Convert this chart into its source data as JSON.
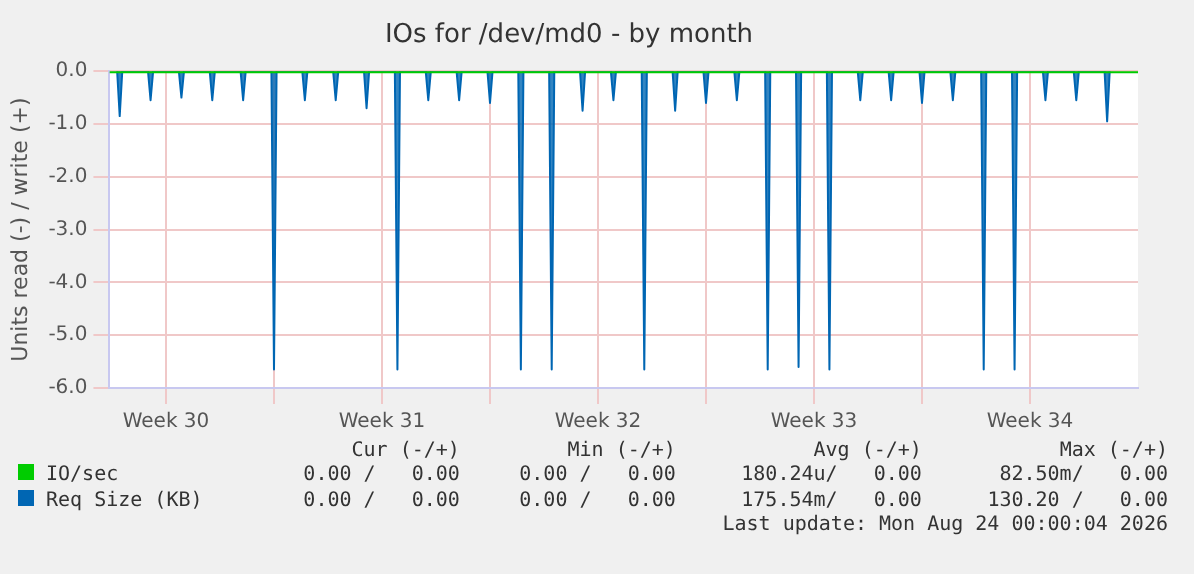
{
  "chart_data": {
    "type": "area",
    "title": "IOs for /dev/md0 - by month",
    "ylabel": "Units read (-) / write (+)",
    "xlim": [
      "2026-07-21T16:00",
      "2026-08-24T00:00"
    ],
    "ylim": [
      -6,
      0
    ],
    "yticks": [
      {
        "value": -6,
        "label": "-6.0"
      },
      {
        "value": -5,
        "label": "-5.0"
      },
      {
        "value": -4,
        "label": "-4.0"
      },
      {
        "value": -3,
        "label": "-3.0"
      },
      {
        "value": -2,
        "label": "-2.0"
      },
      {
        "value": -1,
        "label": "-1.0"
      },
      {
        "value": 0,
        "label": "0.0"
      }
    ],
    "xticks": [
      {
        "value": "2026-07-23T12:00",
        "label": "Week 30"
      },
      {
        "value": "2026-07-27T00:00",
        "label": null
      },
      {
        "value": "2026-07-30T12:00",
        "label": "Week 31"
      },
      {
        "value": "2026-08-03T00:00",
        "label": null
      },
      {
        "value": "2026-08-06T12:00",
        "label": "Week 32"
      },
      {
        "value": "2026-08-10T00:00",
        "label": null
      },
      {
        "value": "2026-08-13T12:00",
        "label": "Week 33"
      },
      {
        "value": "2026-08-17T00:00",
        "label": null
      },
      {
        "value": "2026-08-20T12:00",
        "label": "Week 34"
      }
    ],
    "grid": true,
    "legend": "bottom",
    "marker": "none",
    "series": [
      {
        "name": "IO/sec",
        "color": "#00cc00",
        "type": "line",
        "x": [
          "2026-07-21T16:00",
          "2026-08-24T00:00"
        ],
        "values": [
          0,
          0
        ]
      },
      {
        "name": "Req Size (KB)",
        "color": "#0066b3",
        "type": "area",
        "x": [
          "2026-07-21T22:00",
          "2026-07-22T00:00",
          "2026-07-22T02:00",
          "2026-07-22T22:00",
          "2026-07-23T00:00",
          "2026-07-23T02:00",
          "2026-07-23T22:00",
          "2026-07-24T00:00",
          "2026-07-24T02:00",
          "2026-07-24T22:00",
          "2026-07-25T00:00",
          "2026-07-25T02:00",
          "2026-07-25T22:00",
          "2026-07-26T00:00",
          "2026-07-26T02:00",
          "2026-07-26T22:00",
          "2026-07-27T00:00",
          "2026-07-27T02:00",
          "2026-07-27T22:00",
          "2026-07-28T00:00",
          "2026-07-28T02:00",
          "2026-07-28T22:00",
          "2026-07-29T00:00",
          "2026-07-29T02:00",
          "2026-07-29T22:00",
          "2026-07-30T00:00",
          "2026-07-30T02:00",
          "2026-07-30T22:00",
          "2026-07-31T00:00",
          "2026-07-31T02:00",
          "2026-07-31T22:00",
          "2026-08-01T00:00",
          "2026-08-01T02:00",
          "2026-08-01T22:00",
          "2026-08-02T00:00",
          "2026-08-02T02:00",
          "2026-08-02T22:00",
          "2026-08-03T00:00",
          "2026-08-03T02:00",
          "2026-08-03T22:00",
          "2026-08-04T00:00",
          "2026-08-04T02:00",
          "2026-08-04T22:00",
          "2026-08-05T00:00",
          "2026-08-05T02:00",
          "2026-08-05T22:00",
          "2026-08-06T00:00",
          "2026-08-06T02:00",
          "2026-08-06T22:00",
          "2026-08-07T00:00",
          "2026-08-07T02:00",
          "2026-08-07T22:00",
          "2026-08-08T00:00",
          "2026-08-08T02:00",
          "2026-08-08T22:00",
          "2026-08-09T00:00",
          "2026-08-09T02:00",
          "2026-08-09T22:00",
          "2026-08-10T00:00",
          "2026-08-10T02:00",
          "2026-08-10T22:00",
          "2026-08-11T00:00",
          "2026-08-11T02:00",
          "2026-08-11T22:00",
          "2026-08-12T00:00",
          "2026-08-12T02:00",
          "2026-08-12T22:00",
          "2026-08-13T00:00",
          "2026-08-13T02:00",
          "2026-08-13T22:00",
          "2026-08-14T00:00",
          "2026-08-14T02:00",
          "2026-08-14T22:00",
          "2026-08-15T00:00",
          "2026-08-15T02:00",
          "2026-08-15T22:00",
          "2026-08-16T00:00",
          "2026-08-16T02:00",
          "2026-08-16T22:00",
          "2026-08-17T00:00",
          "2026-08-17T02:00",
          "2026-08-17T22:00",
          "2026-08-18T00:00",
          "2026-08-18T02:00",
          "2026-08-18T22:00",
          "2026-08-19T00:00",
          "2026-08-19T02:00",
          "2026-08-19T22:00",
          "2026-08-20T00:00",
          "2026-08-20T02:00",
          "2026-08-20T22:00",
          "2026-08-21T00:00",
          "2026-08-21T02:00",
          "2026-08-21T22:00",
          "2026-08-22T00:00",
          "2026-08-22T02:00",
          "2026-08-22T22:00",
          "2026-08-23T00:00",
          "2026-08-23T02:00"
        ],
        "values": [
          0,
          -0.85,
          0,
          0,
          -0.55,
          0,
          0,
          -0.5,
          0,
          0,
          -0.55,
          0,
          0,
          -0.55,
          0,
          0,
          -5.65,
          0,
          0,
          -0.55,
          0,
          0,
          -0.55,
          0,
          0,
          -0.7,
          0,
          0,
          -5.65,
          0,
          0,
          -0.55,
          0,
          0,
          -0.55,
          0,
          0,
          -0.6,
          0,
          0,
          -5.65,
          0,
          0,
          -5.65,
          0,
          0,
          -0.75,
          0,
          0,
          -0.55,
          0,
          0,
          -5.65,
          0,
          0,
          -0.75,
          0,
          0,
          -0.6,
          0,
          0,
          -0.55,
          0,
          0,
          -5.65,
          0,
          0,
          -5.6,
          0,
          0,
          -5.65,
          0,
          0,
          -0.55,
          0,
          0,
          -0.55,
          0,
          0,
          -0.6,
          0,
          0,
          -0.55,
          0,
          0,
          -5.65,
          0,
          0,
          -5.65,
          0,
          0,
          -0.55,
          0,
          0,
          -0.55,
          0,
          0,
          -0.95,
          0
        ]
      }
    ],
    "annotations": [
      "Cur (-/+)",
      "Min (-/+)",
      "Avg (-/+)",
      "Max (-/+)",
      "0.00 /   0.00",
      "0.00 /   0.00",
      "180.24u/   0.00",
      "82.50m/   0.00",
      "0.00 /   0.00",
      "0.00 /   0.00",
      "175.54m/   0.00",
      "130.20 /   0.00",
      "Last update: Mon Aug 24 00:00:04 2026"
    ]
  }
}
